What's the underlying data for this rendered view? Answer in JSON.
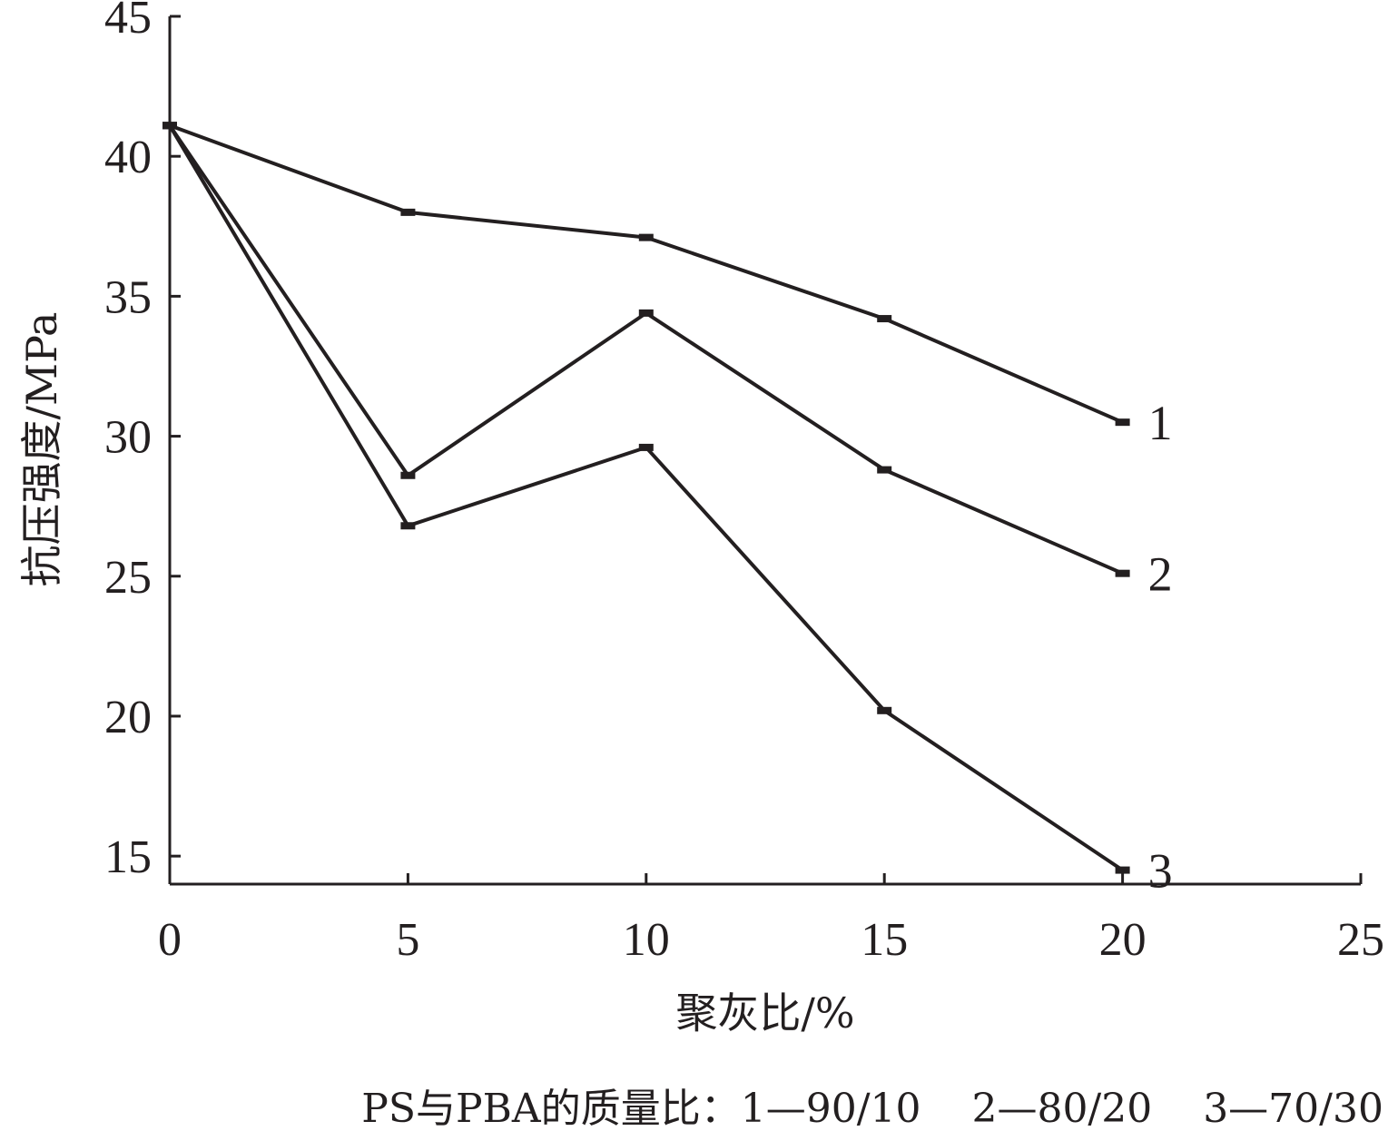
{
  "chart_data": {
    "type": "line",
    "title": "",
    "xlabel": "聚灰比/%",
    "ylabel": "抗压强度/MPa",
    "xlim": [
      0,
      25
    ],
    "ylim": [
      14,
      45
    ],
    "x_ticks": [
      0,
      5,
      10,
      15,
      20,
      25
    ],
    "y_ticks": [
      15,
      20,
      25,
      30,
      35,
      40,
      45
    ],
    "grid": false,
    "x": [
      0,
      5,
      10,
      15,
      20
    ],
    "series": [
      {
        "name": "1",
        "values": [
          41.1,
          38.0,
          37.1,
          34.2,
          30.5
        ]
      },
      {
        "name": "2",
        "values": [
          41.1,
          28.6,
          34.4,
          28.8,
          25.1
        ]
      },
      {
        "name": "3",
        "values": [
          41.1,
          26.8,
          29.6,
          20.2,
          14.5
        ]
      }
    ],
    "caption": "PS与PBA的质量比：1—90/10    2—80/20    3—70/30",
    "line_color": "#231f20"
  }
}
